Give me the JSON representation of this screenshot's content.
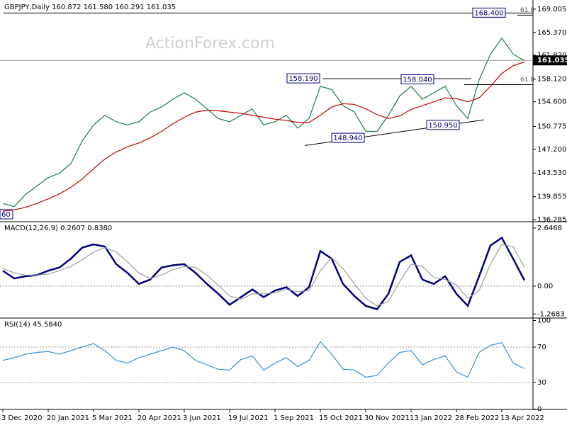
{
  "chart_data": [
    {
      "type": "line",
      "title": "GBPJPY,Daily 160.872 161.580 160.291 161.035",
      "watermark": "ActionForex.com",
      "ylim": [
        136.07,
        170.2
      ],
      "yticks": [
        {
          "value": 169.005,
          "label": "169.005"
        },
        {
          "value": 165.37,
          "label": "165.370"
        },
        {
          "value": 161.82,
          "label": "161.820"
        },
        {
          "value": 158.12,
          "label": "158.120"
        },
        {
          "value": 154.6,
          "label": "154.600"
        },
        {
          "value": 150.775,
          "label": "150.775"
        },
        {
          "value": 147.2,
          "label": "147.200"
        },
        {
          "value": 143.53,
          "label": "143.530"
        },
        {
          "value": 139.855,
          "label": "139.855"
        },
        {
          "value": 136.285,
          "label": "136.285"
        }
      ],
      "last_price": 161.035,
      "series": [
        {
          "color": "#1a7a4a",
          "values": [
            138.8,
            138.3,
            140.2,
            141.5,
            142.8,
            143.5,
            145.0,
            148.5,
            151.0,
            152.5,
            151.5,
            151.0,
            151.5,
            153.0,
            153.8,
            155.0,
            156.0,
            155.0,
            153.5,
            152.0,
            151.5,
            152.5,
            153.5,
            151.0,
            151.5,
            152.5,
            150.5,
            152.0,
            157.0,
            156.5,
            154.0,
            153.0,
            150.0,
            150.0,
            152.5,
            155.5,
            157.0,
            155.0,
            156.0,
            157.0,
            154.0,
            152.0,
            158.0,
            162.0,
            164.5,
            162.0,
            161.0
          ]
        },
        {
          "color": "#cc0000",
          "values": [
            137.6,
            137.8,
            138.2,
            138.8,
            139.5,
            140.3,
            141.3,
            142.6,
            144.2,
            145.7,
            146.8,
            147.6,
            148.2,
            149.0,
            150.0,
            151.2,
            152.2,
            153.0,
            153.3,
            153.2,
            153.0,
            152.8,
            152.5,
            152.2,
            151.9,
            151.7,
            151.4,
            151.4,
            152.5,
            153.8,
            154.3,
            154.2,
            153.5,
            152.6,
            152.0,
            152.4,
            153.4,
            154.0,
            154.6,
            155.2,
            155.1,
            154.6,
            155.2,
            157.0,
            159.0,
            160.2,
            160.8
          ]
        }
      ],
      "annotations": [
        {
          "label": "168.400",
          "value": 168.4
        },
        {
          "label": "158.190",
          "value": 158.19
        },
        {
          "label": "158.040",
          "value": 158.04
        },
        {
          "label": "148.940",
          "value": 148.94
        },
        {
          "label": "150.950",
          "value": 150.95
        }
      ],
      "fib_levels": [
        {
          "label": "61.8",
          "price": 168.4
        },
        {
          "label": "61.8",
          "price": 157.6
        }
      ],
      "trendline": {
        "start": 147.8,
        "end": 151.8
      },
      "edge_label": "60"
    },
    {
      "type": "line",
      "title": "MACD(12,26,9) 0.2607 0.8380",
      "ylim": [
        -1.42,
        2.9
      ],
      "yticks": [
        2.6468,
        {
          "value": 0,
          "label": "0.00"
        },
        -1.2683
      ],
      "series": [
        {
          "color": "#000080",
          "values": [
            0.7,
            0.35,
            0.45,
            0.5,
            0.7,
            0.85,
            1.25,
            1.75,
            1.9,
            1.8,
            1.0,
            0.6,
            0.1,
            0.3,
            0.85,
            0.95,
            1.0,
            0.6,
            0.1,
            -0.35,
            -0.85,
            -0.5,
            -0.15,
            -0.5,
            -0.2,
            -0.05,
            -0.45,
            -0.05,
            1.6,
            1.25,
            0.1,
            -0.45,
            -0.9,
            -1.05,
            -0.35,
            1.1,
            1.4,
            0.3,
            0.1,
            0.45,
            -0.35,
            -0.9,
            0.45,
            1.85,
            2.2,
            1.25,
            0.26
          ]
        },
        {
          "color": "#a0a0a0",
          "values": [
            0.8,
            0.6,
            0.5,
            0.5,
            0.55,
            0.7,
            0.9,
            1.2,
            1.55,
            1.75,
            1.55,
            1.1,
            0.6,
            0.35,
            0.5,
            0.75,
            0.9,
            0.85,
            0.5,
            0.05,
            -0.45,
            -0.6,
            -0.35,
            -0.35,
            -0.3,
            -0.15,
            -0.25,
            -0.2,
            0.7,
            1.3,
            0.8,
            0.1,
            -0.55,
            -0.9,
            -0.7,
            0.2,
            1.0,
            0.9,
            0.4,
            0.3,
            0.05,
            -0.55,
            -0.2,
            1.0,
            1.9,
            1.8,
            0.84
          ]
        }
      ]
    },
    {
      "type": "line",
      "title": "RSI(14) 45.5840",
      "ylim": [
        -0.4,
        102
      ],
      "yticks": [
        100,
        70,
        30,
        0
      ],
      "categories": [
        "3 Dec 2020",
        null,
        null,
        null,
        "20 Jan 2021",
        null,
        null,
        null,
        "5 Mar 2021",
        null,
        null,
        null,
        "20 Apr 2021",
        null,
        null,
        null,
        "3 Jun 2021",
        null,
        null,
        null,
        "19 Jul 2021",
        null,
        null,
        null,
        "1 Sep 2021",
        null,
        null,
        null,
        "15 Oct 2021",
        null,
        null,
        null,
        "30 Nov 2021",
        null,
        null,
        null,
        "13 Jan 2022",
        null,
        null,
        null,
        "28 Feb 2022",
        null,
        null,
        null,
        "13 Apr 2022",
        null,
        null
      ],
      "series": [
        {
          "color": "#3a8fd9",
          "values": [
            55,
            58,
            62,
            64,
            65,
            62,
            66,
            70,
            74,
            66,
            55,
            52,
            58,
            62,
            66,
            70,
            66,
            55,
            50,
            45,
            44,
            56,
            60,
            44,
            52,
            58,
            48,
            55,
            76,
            62,
            45,
            44,
            36,
            38,
            52,
            64,
            66,
            50,
            56,
            60,
            42,
            36,
            64,
            72,
            75,
            52,
            45.6
          ]
        }
      ]
    }
  ]
}
